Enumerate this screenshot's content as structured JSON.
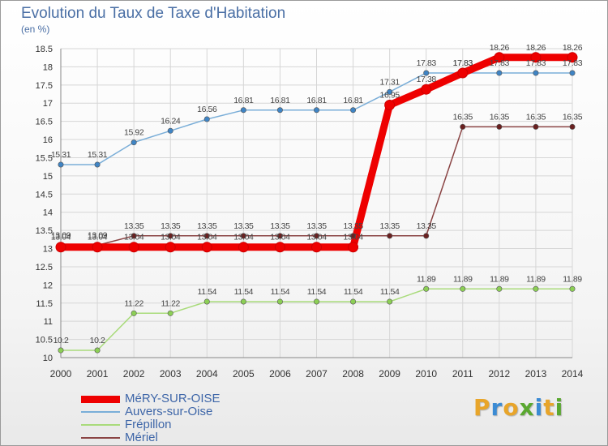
{
  "header": {
    "title": "Evolution du Taux de Taxe d'Habitation",
    "unit": "(en %)"
  },
  "logo": {
    "text": "Proxiti",
    "colors": [
      "#e8a52a",
      "#3b8bd4",
      "#e8a52a",
      "#5aa830",
      "#3b8bd4",
      "#e8a52a",
      "#5aa830"
    ]
  },
  "chart_data": {
    "type": "line",
    "title": "Evolution du Taux de Taxe d'Habitation",
    "ylabel": "(en %)",
    "xlabel": "",
    "ylim": [
      10,
      18.5
    ],
    "grid": true,
    "legend_position": "bottom-left",
    "x": [
      "2000",
      "2001",
      "2002",
      "2003",
      "2004",
      "2005",
      "2006",
      "2007",
      "2008",
      "2009",
      "2010",
      "2011",
      "2012",
      "2013",
      "2014"
    ],
    "yticks": [
      "10",
      "10.5",
      "11",
      "11.5",
      "12",
      "12.5",
      "13",
      "13.5",
      "14",
      "14.5",
      "15",
      "15.5",
      "16",
      "16.5",
      "17",
      "17.5",
      "18",
      "18.5"
    ],
    "series": [
      {
        "name": "MéRY-SUR-OISE",
        "color": "#ee0000",
        "marker": "#ee0000",
        "width": 9,
        "values": [
          13.04,
          13.04,
          13.04,
          13.04,
          13.04,
          13.04,
          13.04,
          13.04,
          13.04,
          16.95,
          17.38,
          17.83,
          18.26,
          18.26,
          18.26
        ],
        "labels": [
          "13.04",
          "13.04",
          "13.04",
          "13.04",
          "13.04",
          "13.04",
          "13.04",
          "13.04",
          "13.04",
          "16.95",
          "17.38",
          "17.83",
          "18.26",
          "18.26",
          "18.26"
        ]
      },
      {
        "name": "Auvers-sur-Oise",
        "color": "#7aaed8",
        "marker": "#3f84c4",
        "width": 1.5,
        "values": [
          15.31,
          15.31,
          15.92,
          16.24,
          16.56,
          16.81,
          16.81,
          16.81,
          16.81,
          17.31,
          17.83,
          17.83,
          17.83,
          17.83,
          17.83
        ],
        "labels": [
          "15.31",
          "15.31",
          "15.92",
          "16.24",
          "16.56",
          "16.81",
          "16.81",
          "16.81",
          "16.81",
          "17.31",
          "17.83",
          "17.83",
          "17.83",
          "17.83",
          "17.83"
        ]
      },
      {
        "name": "Frépillon",
        "color": "#a9db7b",
        "marker": "#8ccf55",
        "width": 1.5,
        "values": [
          10.2,
          10.2,
          11.22,
          11.22,
          11.54,
          11.54,
          11.54,
          11.54,
          11.54,
          11.54,
          11.89,
          11.89,
          11.89,
          11.89,
          11.89
        ],
        "labels": [
          "10.2",
          "10.2",
          "11.22",
          "11.22",
          "11.54",
          "11.54",
          "11.54",
          "11.54",
          "11.54",
          "11.54",
          "11.89",
          "11.89",
          "11.89",
          "11.89",
          "11.89"
        ]
      },
      {
        "name": "Mériel",
        "color": "#8a4444",
        "marker": "#6a2020",
        "width": 1.5,
        "values": [
          13.09,
          13.09,
          13.35,
          13.35,
          13.35,
          13.35,
          13.35,
          13.35,
          13.35,
          13.35,
          13.35,
          16.35,
          16.35,
          16.35,
          16.35
        ],
        "labels": [
          "13.09",
          "13.09",
          "13.35",
          "13.35",
          "13.35",
          "13.35",
          "13.35",
          "13.35",
          "13.35",
          "13.35",
          "13.35",
          "16.35",
          "16.35",
          "16.35",
          "16.35"
        ]
      }
    ]
  }
}
